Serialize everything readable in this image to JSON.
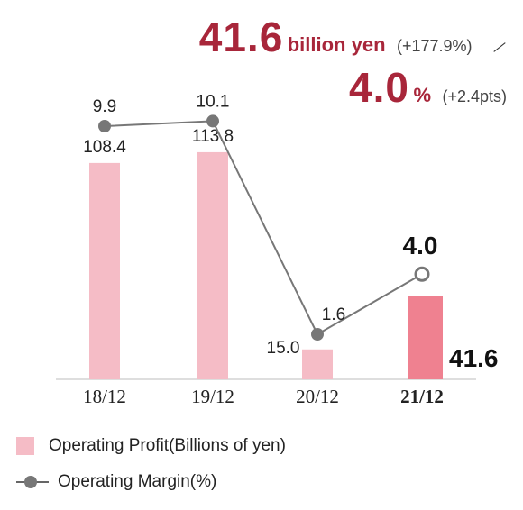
{
  "headline": {
    "profit_value": "41.6",
    "profit_unit": "billion yen",
    "profit_change": "(+177.9%)",
    "margin_value": "4.0",
    "margin_unit": "%",
    "margin_change": "(+2.4pts)"
  },
  "chart_data": {
    "type": "bar",
    "categories": [
      "18/12",
      "19/12",
      "20/12",
      "21/12"
    ],
    "series": [
      {
        "name": "Operating Profit(Billions of yen)",
        "type": "bar",
        "values": [
          108.4,
          113.8,
          15.0,
          41.6
        ],
        "labels": [
          "108.4",
          "113.8",
          "15.0",
          "41.6"
        ]
      },
      {
        "name": "Operating Margin(%)",
        "type": "line",
        "values": [
          9.9,
          10.1,
          1.6,
          4.0
        ],
        "labels": [
          "9.9",
          "10.1",
          "1.6",
          "4.0"
        ]
      }
    ],
    "highlight_index": 3,
    "colors": {
      "bar": "#f5bcc6",
      "bar_highlight": "#ef8190",
      "line": "#777777",
      "highlight_label": "#111111"
    }
  },
  "legend": {
    "bar_label": "Operating Profit(Billions of yen)",
    "line_label": "Operating Margin(%)"
  }
}
